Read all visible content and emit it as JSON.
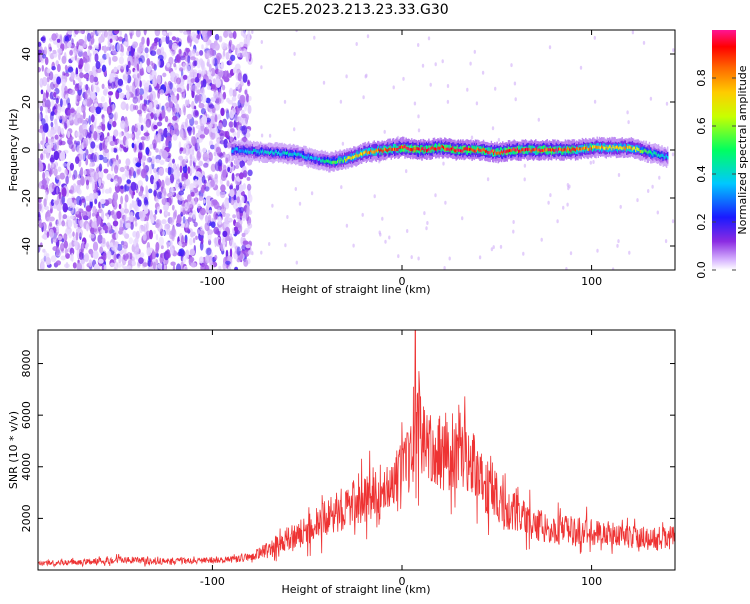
{
  "title": "C2E5.2023.213.23.33.G30",
  "chart_data": [
    {
      "type": "heatmap",
      "xlabel": "Height of straight line (km)",
      "ylabel": "Frequency (Hz)",
      "xlim": [
        -192,
        144
      ],
      "ylim": [
        -50,
        50
      ],
      "xticks": [
        -100,
        0,
        100
      ],
      "yticks": [
        -40,
        -20,
        0,
        20,
        40
      ],
      "colorbar": {
        "label": "Normalized spectral amplitude",
        "range": [
          0,
          1
        ],
        "ticks": [
          "0.0",
          "0.2",
          "0.4",
          "0.6",
          "0.8"
        ],
        "tick_values": [
          0.0,
          0.2,
          0.4,
          0.6,
          0.8
        ],
        "colormap": [
          "#e8d8ff",
          "#8a2be2",
          "#1a1aff",
          "#00c8ff",
          "#00ff60",
          "#ffff00",
          "#ff8000",
          "#ff0000",
          "#ff1493"
        ]
      },
      "noise_region_x": [
        -192,
        -80
      ],
      "signal_ridge": {
        "x": [
          -90,
          -70,
          -55,
          -45,
          -38,
          -30,
          -20,
          -10,
          0,
          10,
          20,
          30,
          40,
          50,
          60,
          70,
          80,
          90,
          100,
          110,
          120,
          130,
          140
        ],
        "frequency_hz": [
          0,
          -1,
          -2,
          -4,
          -5,
          -4,
          -1,
          0,
          1,
          0,
          1,
          0,
          0,
          -1,
          0,
          0,
          0,
          0,
          1,
          1,
          1,
          -1,
          -3
        ],
        "amplitude": [
          0.35,
          0.4,
          0.4,
          0.35,
          0.5,
          0.6,
          0.7,
          0.8,
          0.85,
          0.9,
          0.85,
          0.9,
          0.85,
          0.85,
          0.9,
          0.85,
          0.85,
          0.8,
          0.7,
          0.65,
          0.7,
          0.5,
          0.35
        ]
      }
    },
    {
      "type": "line",
      "xlabel": "Height of straight line (km)",
      "ylabel": "SNR (10 * v/v)",
      "xlim": [
        -192,
        144
      ],
      "ylim": [
        0,
        9300
      ],
      "xticks": [
        -100,
        0,
        100
      ],
      "yticks": [
        2000,
        4000,
        6000,
        8000
      ],
      "grid": false,
      "series": [
        {
          "color": "#ee3333",
          "envelope_x": [
            -192,
            -170,
            -150,
            -130,
            -110,
            -90,
            -80,
            -70,
            -60,
            -50,
            -40,
            -30,
            -20,
            -10,
            0,
            5,
            8,
            10,
            15,
            20,
            25,
            30,
            35,
            40,
            45,
            50,
            55,
            60,
            70,
            80,
            90,
            100,
            110,
            120,
            130,
            140,
            144
          ],
          "baseline": [
            250,
            300,
            400,
            350,
            350,
            400,
            500,
            800,
            1200,
            1500,
            2000,
            2400,
            2800,
            3200,
            3800,
            4500,
            5500,
            5200,
            4800,
            4600,
            4500,
            4700,
            4400,
            3800,
            3200,
            2800,
            2400,
            2200,
            1800,
            1600,
            1500,
            1500,
            1400,
            1300,
            1200,
            1200,
            1300
          ],
          "spread": [
            150,
            200,
            250,
            250,
            200,
            250,
            300,
            600,
            900,
            1100,
            1300,
            1500,
            1800,
            1800,
            2000,
            2500,
            3000,
            2800,
            2500,
            2500,
            2600,
            2800,
            2500,
            2300,
            2000,
            1800,
            1500,
            1400,
            1200,
            1100,
            1000,
            1000,
            900,
            800,
            800,
            900,
            900
          ],
          "peak": {
            "x": 7,
            "y": 9300
          }
        }
      ]
    }
  ]
}
